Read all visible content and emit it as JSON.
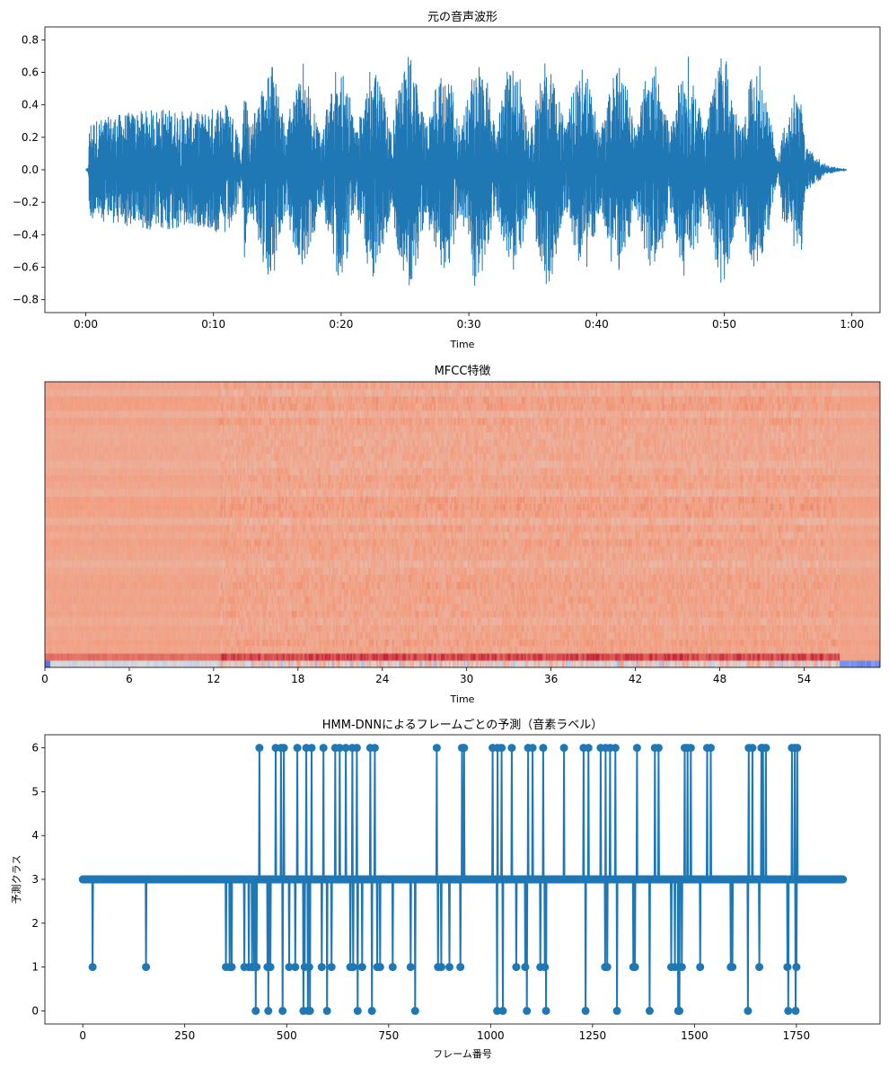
{
  "chart_data": [
    {
      "type": "line",
      "title": "元の音声波形",
      "xlabel": "Time",
      "ylabel": "",
      "xlim": [
        -3.2,
        62.2
      ],
      "ylim": [
        -0.88,
        0.88
      ],
      "xticks": [
        0,
        10,
        20,
        30,
        40,
        50,
        60
      ],
      "xtick_labels": [
        "0:00",
        "0:10",
        "0:20",
        "0:30",
        "0:40",
        "0:50",
        "1:00"
      ],
      "yticks": [
        0.8,
        0.6,
        0.4,
        0.2,
        0.0,
        -0.2,
        -0.4,
        -0.6,
        -0.8
      ],
      "ytick_labels": [
        "0.8",
        "0.6",
        "0.4",
        "0.2",
        "0.0",
        "−0.2",
        "−0.4",
        "−0.6",
        "−0.8"
      ],
      "duration_s": 59.6,
      "color": "#1f77b4",
      "amplitude_envelope": [
        [
          0,
          0
        ],
        [
          0.2,
          0.02
        ],
        [
          0.3,
          0.3
        ],
        [
          3,
          0.35
        ],
        [
          6,
          0.38
        ],
        [
          9,
          0.35
        ],
        [
          11,
          0.42
        ],
        [
          11.8,
          0.3
        ],
        [
          12.2,
          0.05
        ],
        [
          12.5,
          0.78
        ],
        [
          14,
          0.7
        ],
        [
          16,
          0.75
        ],
        [
          18,
          0.6
        ],
        [
          20,
          0.72
        ],
        [
          22,
          0.7
        ],
        [
          24,
          0.75
        ],
        [
          26,
          0.78
        ],
        [
          28,
          0.7
        ],
        [
          30,
          0.78
        ],
        [
          32,
          0.72
        ],
        [
          34,
          0.7
        ],
        [
          36,
          0.75
        ],
        [
          38,
          0.72
        ],
        [
          40,
          0.68
        ],
        [
          42,
          0.72
        ],
        [
          44,
          0.7
        ],
        [
          46,
          0.72
        ],
        [
          48,
          0.7
        ],
        [
          50,
          0.75
        ],
        [
          52,
          0.72
        ],
        [
          53.8,
          0.6
        ],
        [
          54.2,
          0.1
        ],
        [
          54.6,
          0.45
        ],
        [
          56,
          0.6
        ],
        [
          56.3,
          0.15
        ],
        [
          58,
          0.03
        ],
        [
          59.6,
          0
        ]
      ]
    },
    {
      "type": "heatmap",
      "title": "MFCC特徴",
      "xlabel": "Time",
      "xlim": [
        0,
        59.4
      ],
      "xticks": [
        0,
        6,
        12,
        18,
        24,
        30,
        36,
        42,
        48,
        54
      ],
      "xtick_labels": [
        "0",
        "6",
        "12",
        "18",
        "24",
        "30",
        "36",
        "42",
        "48",
        "54"
      ],
      "n_coefficients": 40,
      "colormap": "coolwarm"
    },
    {
      "type": "line",
      "title": "HMM-DNNによるフレームごとの予測（音素ラベル）",
      "xlabel": "フレーム番号",
      "ylabel": "予測クラス",
      "xlim": [
        -93,
        1955
      ],
      "ylim": [
        -0.3,
        6.3
      ],
      "xticks": [
        0,
        250,
        500,
        750,
        1000,
        1250,
        1500,
        1750
      ],
      "xtick_labels": [
        "0",
        "250",
        "500",
        "750",
        "1000",
        "1250",
        "1500",
        "1750"
      ],
      "yticks": [
        0,
        1,
        2,
        3,
        4,
        5,
        6
      ],
      "ytick_labels": [
        "0",
        "1",
        "2",
        "3",
        "4",
        "5",
        "6"
      ],
      "marker": "o",
      "color": "#1f77b4",
      "n_frames": 1866,
      "default_class": 3,
      "deviations": [
        [
          24,
          1
        ],
        [
          155,
          1
        ],
        [
          351,
          1
        ],
        [
          360,
          1
        ],
        [
          365,
          1
        ],
        [
          396,
          1
        ],
        [
          407,
          1
        ],
        [
          415,
          1
        ],
        [
          420,
          1
        ],
        [
          424,
          0
        ],
        [
          426,
          1
        ],
        [
          433,
          6
        ],
        [
          453,
          1
        ],
        [
          455,
          0
        ],
        [
          460,
          1
        ],
        [
          473,
          6
        ],
        [
          486,
          6
        ],
        [
          490,
          0
        ],
        [
          493,
          6
        ],
        [
          506,
          1
        ],
        [
          521,
          1
        ],
        [
          526,
          6
        ],
        [
          541,
          0
        ],
        [
          544,
          1
        ],
        [
          548,
          6
        ],
        [
          552,
          0
        ],
        [
          555,
          1
        ],
        [
          557,
          0
        ],
        [
          561,
          6
        ],
        [
          586,
          1
        ],
        [
          590,
          6
        ],
        [
          599,
          0
        ],
        [
          610,
          1
        ],
        [
          619,
          6
        ],
        [
          630,
          6
        ],
        [
          645,
          6
        ],
        [
          656,
          1
        ],
        [
          661,
          6
        ],
        [
          663,
          1
        ],
        [
          672,
          6
        ],
        [
          674,
          0
        ],
        [
          685,
          1
        ],
        [
          705,
          6
        ],
        [
          709,
          0
        ],
        [
          716,
          6
        ],
        [
          722,
          1
        ],
        [
          729,
          1
        ],
        [
          760,
          1
        ],
        [
          804,
          1
        ],
        [
          815,
          0
        ],
        [
          868,
          6
        ],
        [
          871,
          1
        ],
        [
          879,
          1
        ],
        [
          899,
          1
        ],
        [
          926,
          1
        ],
        [
          930,
          6
        ],
        [
          935,
          6
        ],
        [
          1005,
          6
        ],
        [
          1016,
          0
        ],
        [
          1017,
          6
        ],
        [
          1027,
          6
        ],
        [
          1030,
          0
        ],
        [
          1052,
          6
        ],
        [
          1063,
          1
        ],
        [
          1085,
          1
        ],
        [
          1089,
          0
        ],
        [
          1092,
          6
        ],
        [
          1103,
          6
        ],
        [
          1122,
          1
        ],
        [
          1129,
          6
        ],
        [
          1133,
          1
        ],
        [
          1136,
          0
        ],
        [
          1180,
          6
        ],
        [
          1228,
          6
        ],
        [
          1233,
          0
        ],
        [
          1240,
          6
        ],
        [
          1270,
          6
        ],
        [
          1281,
          1
        ],
        [
          1282,
          6
        ],
        [
          1286,
          1
        ],
        [
          1293,
          6
        ],
        [
          1306,
          6
        ],
        [
          1310,
          0
        ],
        [
          1350,
          1
        ],
        [
          1354,
          1
        ],
        [
          1359,
          6
        ],
        [
          1390,
          0
        ],
        [
          1403,
          6
        ],
        [
          1412,
          6
        ],
        [
          1443,
          1
        ],
        [
          1452,
          1
        ],
        [
          1460,
          0
        ],
        [
          1463,
          0
        ],
        [
          1469,
          1
        ],
        [
          1476,
          6
        ],
        [
          1483,
          6
        ],
        [
          1491,
          6
        ],
        [
          1514,
          1
        ],
        [
          1531,
          6
        ],
        [
          1540,
          6
        ],
        [
          1589,
          1
        ],
        [
          1593,
          1
        ],
        [
          1631,
          0
        ],
        [
          1633,
          6
        ],
        [
          1642,
          6
        ],
        [
          1659,
          1
        ],
        [
          1664,
          6
        ],
        [
          1668,
          6
        ],
        [
          1675,
          6
        ],
        [
          1728,
          1
        ],
        [
          1730,
          0
        ],
        [
          1739,
          6
        ],
        [
          1746,
          6
        ],
        [
          1748,
          0
        ],
        [
          1750,
          1
        ],
        [
          1752,
          6
        ]
      ]
    }
  ]
}
